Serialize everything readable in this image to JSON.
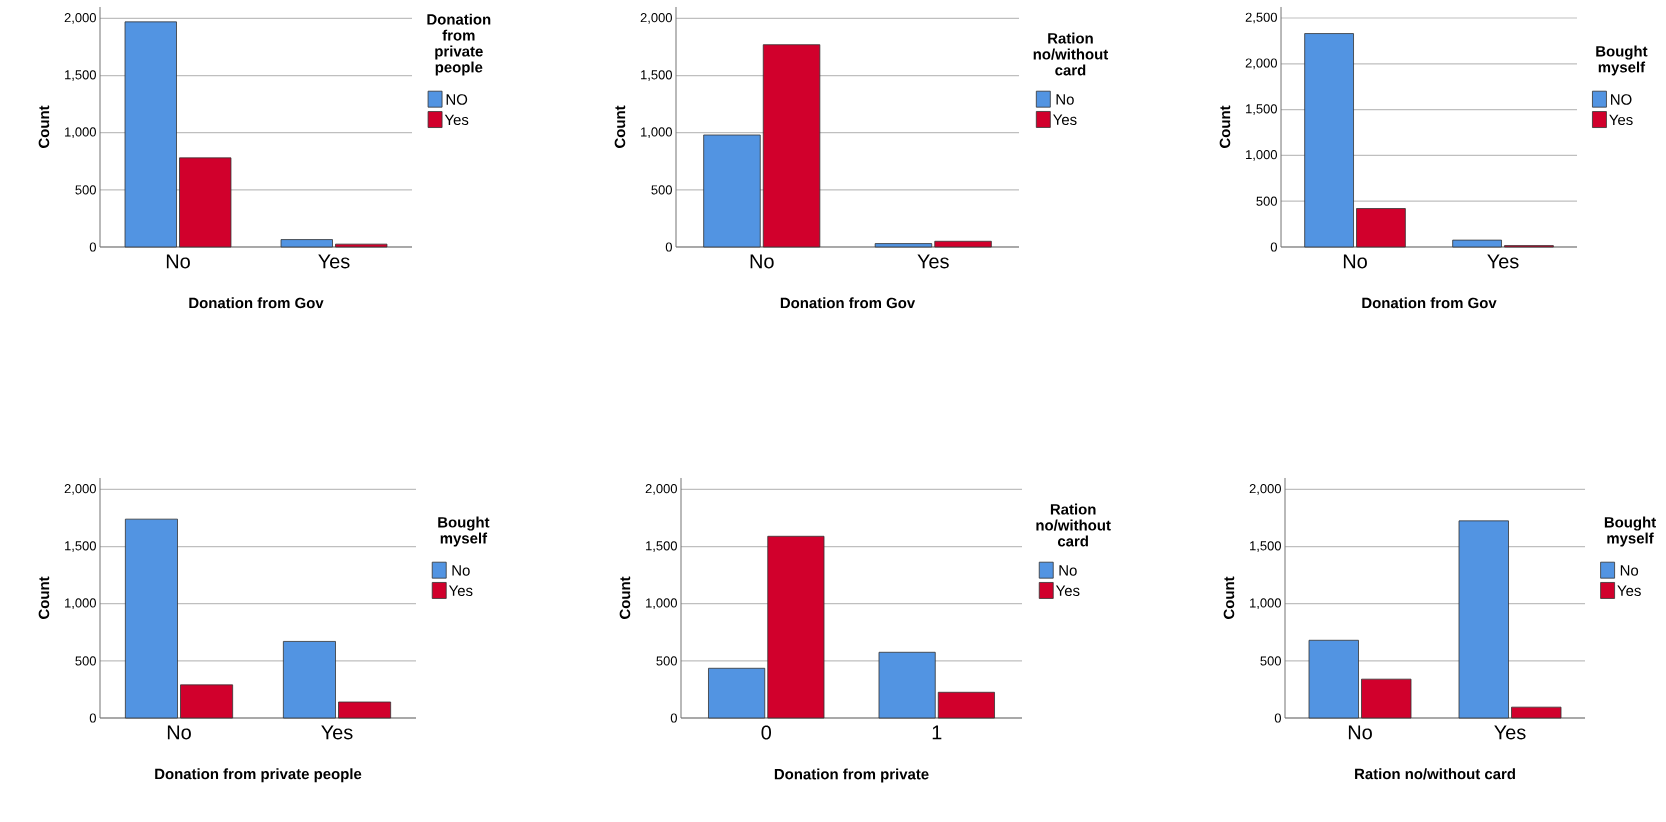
{
  "chart_data": [
    {
      "type": "bar",
      "xlabel": "Donation from Gov",
      "ylabel": "Count",
      "legend_title": "Donation from private people",
      "categories": [
        "No",
        "Yes"
      ],
      "series": [
        {
          "name": "NO",
          "color": "#5294e2",
          "values": [
            1970,
            65
          ]
        },
        {
          "name": "Yes",
          "color": "#d1002c",
          "values": [
            780,
            25
          ]
        }
      ],
      "ylim": [
        0,
        2100
      ],
      "yticks": [
        0,
        500,
        {
          "value": 1000,
          "label": "1,000"
        },
        {
          "value": 1500,
          "label": "1,500"
        },
        {
          "value": 2000,
          "label": "2,000"
        }
      ],
      "grid": "y",
      "legend": "right"
    },
    {
      "type": "bar",
      "xlabel": "Donation from Gov",
      "ylabel": "Count",
      "legend_title": "Ration no/without card",
      "categories": [
        "No",
        "Yes"
      ],
      "series": [
        {
          "name": "No",
          "color": "#5294e2",
          "values": [
            980,
            30
          ]
        },
        {
          "name": "Yes",
          "color": "#d1002c",
          "values": [
            1770,
            50
          ]
        }
      ],
      "ylim": [
        0,
        2100
      ],
      "yticks": [
        0,
        500,
        {
          "value": 1000,
          "label": "1,000"
        },
        {
          "value": 1500,
          "label": "1,500"
        },
        {
          "value": 2000,
          "label": "2,000"
        }
      ],
      "grid": "y",
      "legend": "right"
    },
    {
      "type": "bar",
      "xlabel": "Donation from Gov",
      "ylabel": "Count",
      "legend_title": "Bought myself",
      "categories": [
        "No",
        "Yes"
      ],
      "series": [
        {
          "name": "NO",
          "color": "#5294e2",
          "values": [
            2330,
            75
          ]
        },
        {
          "name": "Yes",
          "color": "#d1002c",
          "values": [
            420,
            15
          ]
        }
      ],
      "ylim": [
        0,
        2620
      ],
      "yticks": [
        0,
        500,
        {
          "value": 1000,
          "label": "1,000"
        },
        {
          "value": 1500,
          "label": "1,500"
        },
        {
          "value": 2000,
          "label": "2,000"
        },
        {
          "value": 2500,
          "label": "2,500"
        }
      ],
      "grid": "y",
      "legend": "right"
    },
    {
      "type": "bar",
      "xlabel": "Donation from private people",
      "ylabel": "Count",
      "legend_title": "Bought myself",
      "categories": [
        "No",
        "Yes"
      ],
      "series": [
        {
          "name": "No",
          "color": "#5294e2",
          "values": [
            1740,
            670
          ]
        },
        {
          "name": "Yes",
          "color": "#d1002c",
          "values": [
            290,
            140
          ]
        }
      ],
      "ylim": [
        0,
        2100
      ],
      "yticks": [
        0,
        500,
        {
          "value": 1000,
          "label": "1,000"
        },
        {
          "value": 1500,
          "label": "1,500"
        },
        {
          "value": 2000,
          "label": "2,000"
        }
      ],
      "grid": "y",
      "legend": "right"
    },
    {
      "type": "bar",
      "xlabel": "Donation from private",
      "ylabel": "Count",
      "legend_title": "Ration no/without card",
      "categories": [
        "0",
        "1"
      ],
      "series": [
        {
          "name": "No",
          "color": "#5294e2",
          "values": [
            435,
            575
          ]
        },
        {
          "name": "Yes",
          "color": "#d1002c",
          "values": [
            1590,
            225
          ]
        }
      ],
      "ylim": [
        0,
        2100
      ],
      "yticks": [
        0,
        500,
        {
          "value": 1000,
          "label": "1,000"
        },
        {
          "value": 1500,
          "label": "1,500"
        },
        {
          "value": 2000,
          "label": "2,000"
        }
      ],
      "grid": "y",
      "legend": "right"
    },
    {
      "type": "bar",
      "xlabel": "Ration no/without card",
      "ylabel": "Count",
      "legend_title": "Bought myself",
      "categories": [
        "No",
        "Yes"
      ],
      "series": [
        {
          "name": "No",
          "color": "#5294e2",
          "values": [
            680,
            1725
          ]
        },
        {
          "name": "Yes",
          "color": "#d1002c",
          "values": [
            340,
            95
          ]
        }
      ],
      "ylim": [
        0,
        2100
      ],
      "yticks": [
        0,
        500,
        {
          "value": 1000,
          "label": "1,000"
        },
        {
          "value": 1500,
          "label": "1,500"
        },
        {
          "value": 2000,
          "label": "2,000"
        }
      ],
      "grid": "y",
      "legend": "right"
    }
  ]
}
